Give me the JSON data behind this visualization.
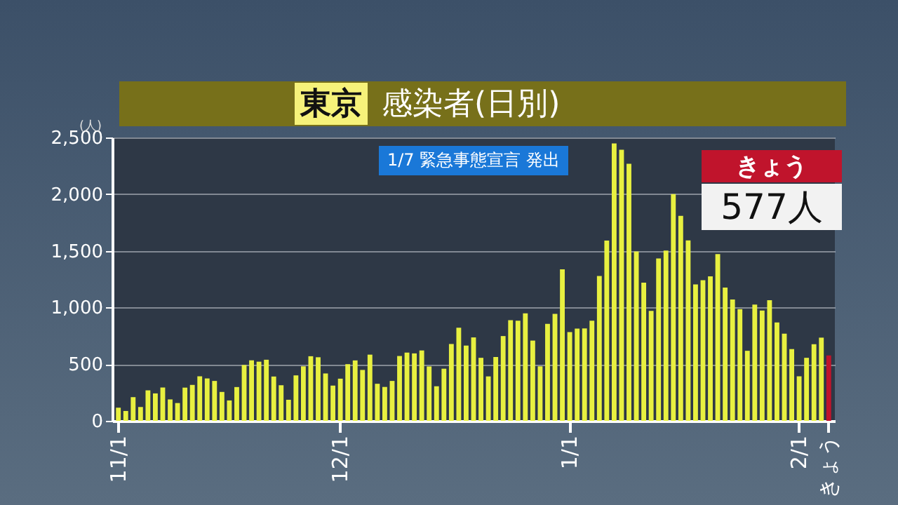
{
  "chart_data": {
    "type": "bar",
    "title": "東京",
    "subtitle": "感染者(日別)",
    "ylabel": "(人)",
    "categories": [
      "11/1",
      null,
      null,
      null,
      null,
      null,
      null,
      null,
      null,
      null,
      null,
      null,
      null,
      null,
      null,
      null,
      null,
      null,
      null,
      null,
      null,
      null,
      null,
      null,
      null,
      null,
      null,
      null,
      null,
      null,
      "12/1",
      null,
      null,
      null,
      null,
      null,
      null,
      null,
      null,
      null,
      null,
      null,
      null,
      null,
      null,
      null,
      null,
      null,
      null,
      null,
      null,
      null,
      null,
      null,
      null,
      null,
      null,
      null,
      null,
      null,
      null,
      "1/1",
      null,
      null,
      null,
      null,
      null,
      null,
      null,
      null,
      null,
      null,
      null,
      null,
      null,
      null,
      null,
      null,
      null,
      null,
      null,
      null,
      null,
      null,
      null,
      null,
      null,
      null,
      null,
      null,
      null,
      null,
      "2/1",
      null,
      null,
      null,
      "きょう"
    ],
    "values": [
      116,
      87,
      209,
      122,
      269,
      242,
      294,
      189,
      157,
      293,
      317,
      393,
      374,
      352,
      255,
      180,
      298,
      493,
      534,
      522,
      539,
      391,
      314,
      186,
      401,
      481,
      570,
      561,
      418,
      311,
      372,
      500,
      533,
      449,
      584,
      327,
      299,
      352,
      572,
      602,
      595,
      621,
      480,
      305,
      460,
      678,
      822,
      664,
      736,
      556,
      392,
      563,
      748,
      888,
      884,
      949,
      708,
      481,
      856,
      944,
      1337,
      783,
      814,
      816,
      884,
      1278,
      1591,
      2447,
      2392,
      2268,
      1494,
      1219,
      970,
      1433,
      1502,
      2001,
      1809,
      1592,
      1204,
      1240,
      1274,
      1471,
      1175,
      1070,
      986,
      618,
      1026,
      973,
      1064,
      868,
      769,
      633,
      393,
      556,
      676,
      734,
      577
    ],
    "colors": [
      "#e8f040",
      "#e8f040",
      "#e8f040",
      "#e8f040",
      "#e8f040",
      "#e8f040",
      "#e8f040",
      "#e8f040",
      "#e8f040",
      "#e8f040",
      "#e8f040",
      "#e8f040",
      "#e8f040",
      "#e8f040",
      "#e8f040",
      "#e8f040",
      "#e8f040",
      "#e8f040",
      "#e8f040",
      "#e8f040",
      "#e8f040",
      "#e8f040",
      "#e8f040",
      "#e8f040",
      "#e8f040",
      "#e8f040",
      "#e8f040",
      "#e8f040",
      "#e8f040",
      "#e8f040",
      "#e8f040",
      "#e8f040",
      "#e8f040",
      "#e8f040",
      "#e8f040",
      "#e8f040",
      "#e8f040",
      "#e8f040",
      "#e8f040",
      "#e8f040",
      "#e8f040",
      "#e8f040",
      "#e8f040",
      "#e8f040",
      "#e8f040",
      "#e8f040",
      "#e8f040",
      "#e8f040",
      "#e8f040",
      "#e8f040",
      "#e8f040",
      "#e8f040",
      "#e8f040",
      "#e8f040",
      "#e8f040",
      "#e8f040",
      "#e8f040",
      "#e8f040",
      "#e8f040",
      "#e8f040",
      "#e8f040",
      "#e8f040",
      "#e8f040",
      "#e8f040",
      "#e8f040",
      "#e8f040",
      "#e8f040",
      "#e8f040",
      "#e8f040",
      "#e8f040",
      "#e8f040",
      "#e8f040",
      "#e8f040",
      "#e8f040",
      "#e8f040",
      "#e8f040",
      "#e8f040",
      "#e8f040",
      "#e8f040",
      "#e8f040",
      "#e8f040",
      "#e8f040",
      "#e8f040",
      "#e8f040",
      "#e8f040",
      "#e8f040",
      "#e8f040",
      "#e8f040",
      "#e8f040",
      "#e8f040",
      "#e8f040",
      "#e8f040",
      "#e8f040",
      "#e8f040",
      "#e8f040",
      "#e8f040",
      "#c0142c"
    ],
    "ylim": [
      0,
      2500
    ],
    "yticks": [
      {
        "value": 0,
        "label": "0"
      },
      {
        "value": 500,
        "label": "500"
      },
      {
        "value": 1000,
        "label": "1,000"
      },
      {
        "value": 1500,
        "label": "1,500"
      },
      {
        "value": 2000,
        "label": "2,000"
      },
      {
        "value": 2500,
        "label": "2,500"
      }
    ],
    "grid": "y",
    "annotations": [
      "1/7 緊急事態宣言 発出",
      "きょう",
      "577人"
    ]
  }
}
